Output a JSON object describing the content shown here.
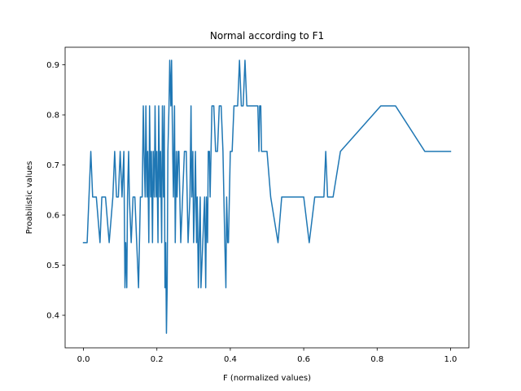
{
  "chart_data": {
    "type": "line",
    "title": "Normal according to F1",
    "xlabel": "F (normalized values)",
    "ylabel": "Proabilistic values",
    "xlim": [
      -0.05,
      1.05
    ],
    "ylim": [
      0.335,
      0.935
    ],
    "xticks": [
      0.0,
      0.2,
      0.4,
      0.6,
      0.8,
      1.0
    ],
    "xtick_labels": [
      "0.0",
      "0.2",
      "0.4",
      "0.6",
      "0.8",
      "1.0"
    ],
    "yticks": [
      0.4,
      0.5,
      0.6,
      0.7,
      0.8,
      0.9
    ],
    "ytick_labels": [
      "0.4",
      "0.5",
      "0.6",
      "0.7",
      "0.8",
      "0.9"
    ],
    "grid": false,
    "series": [
      {
        "color": "#1f77b4",
        "x": [
          0.0,
          0.01,
          0.015,
          0.02,
          0.025,
          0.035,
          0.045,
          0.05,
          0.06,
          0.07,
          0.08,
          0.085,
          0.09,
          0.095,
          0.1,
          0.105,
          0.11,
          0.113,
          0.115,
          0.118,
          0.12,
          0.123,
          0.125,
          0.13,
          0.135,
          0.14,
          0.145,
          0.15,
          0.155,
          0.16,
          0.163,
          0.165,
          0.168,
          0.17,
          0.173,
          0.175,
          0.178,
          0.18,
          0.183,
          0.185,
          0.188,
          0.19,
          0.193,
          0.195,
          0.198,
          0.2,
          0.203,
          0.205,
          0.208,
          0.21,
          0.213,
          0.215,
          0.218,
          0.22,
          0.222,
          0.224,
          0.226,
          0.228,
          0.23,
          0.233,
          0.235,
          0.238,
          0.24,
          0.243,
          0.245,
          0.248,
          0.25,
          0.253,
          0.255,
          0.258,
          0.26,
          0.265,
          0.27,
          0.275,
          0.28,
          0.285,
          0.29,
          0.293,
          0.295,
          0.298,
          0.3,
          0.303,
          0.305,
          0.308,
          0.31,
          0.313,
          0.315,
          0.318,
          0.32,
          0.325,
          0.33,
          0.333,
          0.335,
          0.338,
          0.34,
          0.343,
          0.345,
          0.35,
          0.355,
          0.36,
          0.365,
          0.37,
          0.375,
          0.38,
          0.385,
          0.388,
          0.39,
          0.393,
          0.395,
          0.4,
          0.405,
          0.41,
          0.42,
          0.425,
          0.43,
          0.435,
          0.44,
          0.445,
          0.45,
          0.46,
          0.47,
          0.475,
          0.478,
          0.48,
          0.483,
          0.485,
          0.49,
          0.5,
          0.51,
          0.53,
          0.54,
          0.55,
          0.56,
          0.58,
          0.6,
          0.615,
          0.63,
          0.645,
          0.655,
          0.66,
          0.665,
          0.67,
          0.68,
          0.7,
          0.81,
          0.85,
          0.93,
          1.0
        ],
        "y": [
          0.545,
          0.545,
          0.636,
          0.727,
          0.636,
          0.636,
          0.545,
          0.636,
          0.636,
          0.545,
          0.636,
          0.727,
          0.636,
          0.636,
          0.727,
          0.636,
          0.727,
          0.455,
          0.545,
          0.455,
          0.636,
          0.727,
          0.636,
          0.545,
          0.636,
          0.636,
          0.545,
          0.455,
          0.636,
          0.636,
          0.818,
          0.727,
          0.636,
          0.818,
          0.636,
          0.727,
          0.545,
          0.818,
          0.636,
          0.727,
          0.545,
          0.727,
          0.636,
          0.818,
          0.636,
          0.727,
          0.545,
          0.818,
          0.636,
          0.727,
          0.545,
          0.818,
          0.636,
          0.818,
          0.455,
          0.545,
          0.364,
          0.455,
          0.727,
          0.818,
          0.909,
          0.818,
          0.909,
          0.727,
          0.636,
          0.818,
          0.545,
          0.727,
          0.636,
          0.727,
          0.727,
          0.545,
          0.636,
          0.727,
          0.727,
          0.545,
          0.636,
          0.818,
          0.636,
          0.727,
          0.545,
          0.636,
          0.727,
          0.545,
          0.636,
          0.455,
          0.545,
          0.636,
          0.455,
          0.545,
          0.636,
          0.455,
          0.636,
          0.545,
          0.727,
          0.727,
          0.636,
          0.818,
          0.818,
          0.727,
          0.727,
          0.818,
          0.818,
          0.727,
          0.545,
          0.455,
          0.636,
          0.545,
          0.545,
          0.727,
          0.727,
          0.818,
          0.818,
          0.909,
          0.818,
          0.818,
          0.909,
          0.818,
          0.818,
          0.818,
          0.818,
          0.818,
          0.727,
          0.818,
          0.818,
          0.727,
          0.727,
          0.727,
          0.636,
          0.545,
          0.636,
          0.636,
          0.636,
          0.636,
          0.636,
          0.545,
          0.636,
          0.636,
          0.636,
          0.727,
          0.636,
          0.636,
          0.636,
          0.727,
          0.818,
          0.818,
          0.727,
          0.727
        ]
      }
    ]
  }
}
